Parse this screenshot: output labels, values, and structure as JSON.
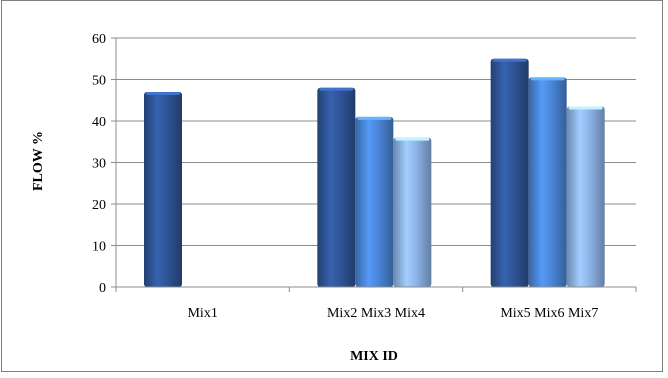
{
  "chart_data": {
    "type": "bar",
    "title": "",
    "xlabel": "MIX ID",
    "ylabel": "FLOW %",
    "ylim": [
      0,
      60
    ],
    "yticks": [
      0,
      10,
      20,
      30,
      40,
      50,
      60
    ],
    "grid": true,
    "legend": "none",
    "groups": [
      {
        "label": "Mix1",
        "bars": [
          {
            "value": 47,
            "color": "#2f5597"
          }
        ]
      },
      {
        "label": "Mix2 Mix3 Mix4",
        "bars": [
          {
            "value": 48,
            "color": "#2f5597"
          },
          {
            "value": 41,
            "color": "#4a86d8"
          },
          {
            "value": 36,
            "color": "#8db4e8"
          }
        ]
      },
      {
        "label": "Mix5 Mix6 Mix7",
        "bars": [
          {
            "value": 55,
            "color": "#2f5597"
          },
          {
            "value": 50.5,
            "color": "#4a86d8"
          },
          {
            "value": 43.5,
            "color": "#8db4e8"
          }
        ]
      }
    ]
  }
}
